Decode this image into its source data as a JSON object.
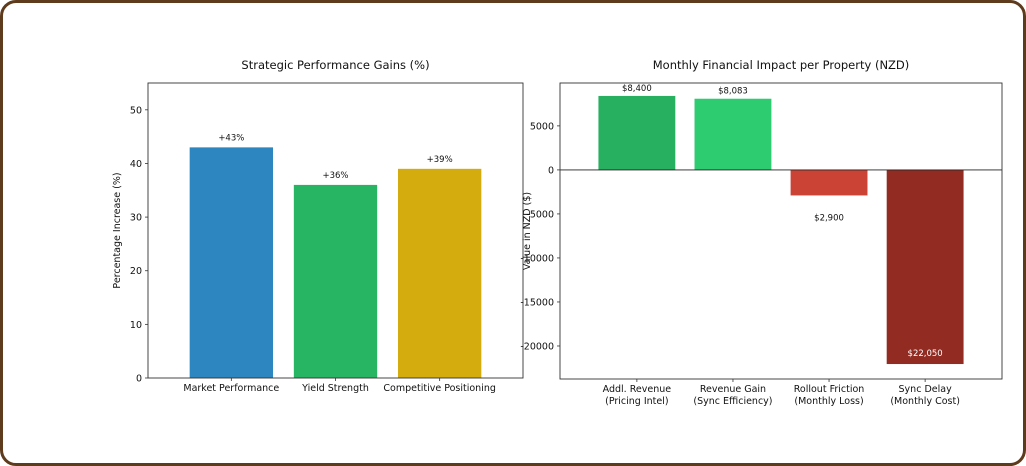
{
  "chart_data": [
    {
      "type": "bar",
      "title": "Strategic Performance Gains (%)",
      "xlabel": "",
      "ylabel": "Percentage Increase (%)",
      "categories": [
        "Market Performance",
        "Yield Strength",
        "Competitive Positioning"
      ],
      "values": [
        43,
        36,
        39
      ],
      "data_labels": [
        "+43%",
        "+36%",
        "+39%"
      ],
      "colors": [
        "#2e86c1",
        "#27b463",
        "#d4ac0d"
      ],
      "ylim": [
        0,
        55
      ],
      "yticks": [
        0,
        10,
        20,
        30,
        40,
        50
      ],
      "grid": false
    },
    {
      "type": "bar",
      "title": "Monthly Financial Impact per Property (NZD)",
      "xlabel": "",
      "ylabel": "Value in NZD ($)",
      "categories": [
        "Addl. Revenue\n(Pricing Intel)",
        "Revenue Gain\n(Sync Efficiency)",
        "Rollout Friction\n(Monthly Loss)",
        "Sync Delay\n(Monthly Cost)"
      ],
      "values": [
        8400,
        8083,
        -2900,
        -22050
      ],
      "data_labels": [
        "$8,400",
        "$8,083",
        "$2,900",
        "$22,050"
      ],
      "colors": [
        "#27b060",
        "#2ecc71",
        "#cb4335",
        "#922b21"
      ],
      "ylim": [
        -23750,
        9870
      ],
      "yticks": [
        -20000,
        -15000,
        -10000,
        -5000,
        0,
        5000
      ],
      "zero_line": true,
      "grid": false
    }
  ]
}
